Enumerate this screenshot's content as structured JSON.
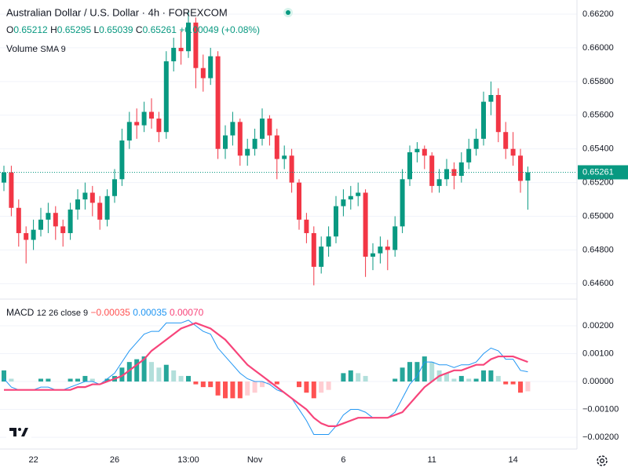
{
  "chart_data": [
    {
      "type": "candlestick",
      "title": "Australian Dollar / U.S. Dollar · 4h · FOREXCOM",
      "legend": {
        "open_label": "O",
        "open": "0.65212",
        "high_label": "H",
        "high": "0.65295",
        "low_label": "L",
        "low": "0.65039",
        "close_label": "C",
        "close": "0.65261",
        "change": "+0.00049 (+0.08%)"
      },
      "volume_label": "Volume",
      "volume_indicator": "SMA 9",
      "categories": [
        null,
        null,
        null,
        null,
        "22",
        null,
        null,
        null,
        null,
        null,
        null,
        null,
        null,
        null,
        null,
        "26",
        null,
        null,
        null,
        null,
        null,
        null,
        null,
        null,
        null,
        "13:00",
        null,
        null,
        null,
        null,
        null,
        null,
        null,
        null,
        "Nov",
        null,
        null,
        null,
        null,
        null,
        null,
        null,
        null,
        null,
        null,
        null,
        "6",
        null,
        null,
        null,
        null,
        null,
        null,
        null,
        null,
        null,
        null,
        null,
        "11",
        null,
        null,
        null,
        null,
        null,
        null,
        null,
        null,
        null,
        null,
        "14",
        null,
        null
      ],
      "open": [
        0.652,
        0.6526,
        0.6505,
        0.649,
        0.6486,
        0.6492,
        0.6498,
        0.6502,
        0.6494,
        0.649,
        0.6504,
        0.651,
        0.6514,
        0.6508,
        0.6498,
        0.6512,
        0.6522,
        0.6545,
        0.6556,
        0.6554,
        0.6562,
        0.6558,
        0.655,
        0.6592,
        0.66,
        0.6598,
        0.6615,
        0.6588,
        0.6582,
        0.6595,
        0.654,
        0.6548,
        0.6556,
        0.6536,
        0.654,
        0.6546,
        0.6558,
        0.6548,
        0.6534,
        0.6536,
        0.652,
        0.6498,
        0.649,
        0.647,
        0.6482,
        0.6488,
        0.6506,
        0.651,
        0.6512,
        0.6514,
        0.6476,
        0.6478,
        0.6482,
        0.648,
        0.6494,
        0.6522,
        0.6538,
        0.654,
        0.6536,
        0.6518,
        0.6522,
        0.6528,
        0.6524,
        0.6532,
        0.654,
        0.6546,
        0.6568,
        0.6572,
        0.655,
        0.654,
        0.6536,
        0.65212
      ],
      "high": [
        0.653,
        0.653,
        0.651,
        0.6494,
        0.6498,
        0.6505,
        0.6508,
        0.6506,
        0.6498,
        0.6508,
        0.6516,
        0.652,
        0.6518,
        0.6512,
        0.6516,
        0.6528,
        0.6552,
        0.6562,
        0.6564,
        0.6568,
        0.657,
        0.6562,
        0.6598,
        0.6606,
        0.661,
        0.6622,
        0.6618,
        0.6596,
        0.66,
        0.6598,
        0.6554,
        0.6562,
        0.6558,
        0.6546,
        0.6552,
        0.6564,
        0.656,
        0.6552,
        0.6542,
        0.654,
        0.6522,
        0.6502,
        0.6494,
        0.6488,
        0.6494,
        0.6512,
        0.6516,
        0.6518,
        0.652,
        0.6516,
        0.6484,
        0.6488,
        0.6486,
        0.65,
        0.6528,
        0.6542,
        0.6544,
        0.6542,
        0.6538,
        0.6528,
        0.6534,
        0.6532,
        0.6538,
        0.6546,
        0.6552,
        0.6574,
        0.658,
        0.6576,
        0.6556,
        0.655,
        0.654,
        0.65295
      ],
      "low": [
        0.6515,
        0.65,
        0.6482,
        0.6472,
        0.648,
        0.6488,
        0.649,
        0.6486,
        0.6482,
        0.6486,
        0.6498,
        0.6504,
        0.65,
        0.6492,
        0.6494,
        0.6508,
        0.6518,
        0.654,
        0.6546,
        0.655,
        0.6552,
        0.6544,
        0.6546,
        0.6586,
        0.659,
        0.6594,
        0.6576,
        0.6574,
        0.6578,
        0.6534,
        0.6534,
        0.6542,
        0.653,
        0.653,
        0.6536,
        0.6542,
        0.6542,
        0.6522,
        0.6528,
        0.6514,
        0.6492,
        0.6484,
        0.6459,
        0.6466,
        0.6476,
        0.6484,
        0.65,
        0.6504,
        0.6506,
        0.6464,
        0.6468,
        0.6472,
        0.6468,
        0.6476,
        0.649,
        0.6518,
        0.6532,
        0.6528,
        0.6514,
        0.6514,
        0.6518,
        0.6516,
        0.652,
        0.6528,
        0.6536,
        0.6542,
        0.656,
        0.6544,
        0.6534,
        0.653,
        0.6514,
        0.65039
      ],
      "close": [
        0.6526,
        0.6505,
        0.649,
        0.6486,
        0.6492,
        0.6498,
        0.6502,
        0.6494,
        0.649,
        0.6504,
        0.651,
        0.6514,
        0.6508,
        0.6498,
        0.6512,
        0.6522,
        0.6545,
        0.6556,
        0.6554,
        0.6562,
        0.6558,
        0.655,
        0.6592,
        0.66,
        0.6598,
        0.6615,
        0.6588,
        0.6582,
        0.6595,
        0.654,
        0.6548,
        0.6556,
        0.6536,
        0.654,
        0.6546,
        0.6558,
        0.6548,
        0.6534,
        0.6536,
        0.652,
        0.6498,
        0.649,
        0.647,
        0.6482,
        0.6488,
        0.6506,
        0.651,
        0.6512,
        0.6514,
        0.6476,
        0.6478,
        0.6482,
        0.648,
        0.6494,
        0.6522,
        0.6538,
        0.654,
        0.6536,
        0.6518,
        0.6522,
        0.6528,
        0.6524,
        0.6532,
        0.654,
        0.6546,
        0.6568,
        0.6572,
        0.655,
        0.654,
        0.6536,
        0.6521,
        0.65261
      ],
      "up_color": "#089981",
      "down_color": "#f23645",
      "ylim": [
        0.64513,
        0.66284
      ],
      "yticks": [
        {
          "value": 0.646,
          "label": "0.64600"
        },
        {
          "value": 0.648,
          "label": "0.64800"
        },
        {
          "value": 0.65,
          "label": "0.65000"
        },
        {
          "value": 0.652,
          "label": "0.65200"
        },
        {
          "value": 0.654,
          "label": "0.65400"
        },
        {
          "value": 0.656,
          "label": "0.65600"
        },
        {
          "value": 0.658,
          "label": "0.65800"
        },
        {
          "value": 0.66,
          "label": "0.66000"
        },
        {
          "value": 0.662,
          "label": "0.66200"
        }
      ],
      "grid": true
    },
    {
      "type": "macd",
      "title": "MACD",
      "params": "12 26 close 9",
      "histogram": {
        "legend_value": "−0.00035",
        "colors": [
          "#26a69a",
          "#b2dfdb",
          "#ff5252",
          "#ffcdd2"
        ],
        "values": [
          0.0004,
          0.0001,
          0,
          0,
          0,
          0.0001,
          0.0001,
          0,
          0,
          0.0001,
          0.0001,
          0.0002,
          0.0001,
          0,
          0.0001,
          0.0002,
          0.0005,
          0.0007,
          0.0008,
          0.0009,
          0.0007,
          0.0005,
          0.0006,
          0.0004,
          0.0002,
          0.0002,
          -0.0001,
          -0.0002,
          -0.0002,
          -0.0005,
          -0.0006,
          -0.0006,
          -0.0006,
          -0.0005,
          -0.0004,
          -0.0002,
          -0.0001,
          -0.0001,
          0,
          0,
          -0.0002,
          -0.0004,
          -0.0006,
          -0.0004,
          -0.0003,
          0,
          0.0003,
          0.0004,
          0.0003,
          0.0002,
          0,
          0,
          0,
          0.0001,
          0.0005,
          0.0007,
          0.0007,
          0.0009,
          0.0007,
          0.0004,
          0.0003,
          0.0001,
          0.0002,
          0.0001,
          0.0001,
          0.0004,
          0.0004,
          0.0002,
          -0.0001,
          -0.0001,
          -0.0004,
          -0.00035
        ]
      },
      "series": [
        {
          "color": "#2196f3",
          "legend_value": "0.00035",
          "values": [
            0.0001,
            -0.0002,
            -0.0003,
            -0.0003,
            -0.0003,
            -0.0002,
            -0.0002,
            -0.0003,
            -0.0003,
            -0.0002,
            -0.0001,
            0,
            0,
            -0.0001,
            0.0001,
            0.0003,
            0.0007,
            0.0011,
            0.0014,
            0.0017,
            0.0018,
            0.0018,
            0.0021,
            0.0021,
            0.0021,
            0.0022,
            0.002,
            0.0018,
            0.0017,
            0.0012,
            0.0009,
            0.0006,
            0.0003,
            0.0001,
            0,
            0,
            -0.0001,
            -0.0003,
            -0.0004,
            -0.0006,
            -0.001,
            -0.0014,
            -0.0019,
            -0.0019,
            -0.0019,
            -0.0016,
            -0.0012,
            -0.001,
            -0.001,
            -0.0011,
            -0.0013,
            -0.0013,
            -0.0013,
            -0.0011,
            -0.0006,
            -0.0001,
            0.0002,
            0.0007,
            0.0007,
            0.0006,
            0.0006,
            0.0005,
            0.0006,
            0.0006,
            0.0007,
            0.001,
            0.0012,
            0.0011,
            0.0008,
            0.0008,
            0.0004,
            0.00035
          ]
        },
        {
          "color": "#f7447a",
          "legend_value": "0.00070",
          "values": [
            -0.0003,
            -0.0003,
            -0.0003,
            -0.0003,
            -0.0003,
            -0.0003,
            -0.0003,
            -0.0003,
            -0.0003,
            -0.0003,
            -0.0002,
            -0.0002,
            -0.0001,
            -0.0001,
            0,
            0.0001,
            0.0002,
            0.0004,
            0.0006,
            0.0008,
            0.0011,
            0.0013,
            0.0015,
            0.0017,
            0.0019,
            0.002,
            0.0021,
            0.002,
            0.0019,
            0.0017,
            0.0015,
            0.0012,
            0.0009,
            0.0006,
            0.0004,
            0.0002,
            0,
            -0.0002,
            -0.0004,
            -0.0006,
            -0.0008,
            -0.001,
            -0.0013,
            -0.0015,
            -0.0016,
            -0.0016,
            -0.0015,
            -0.0014,
            -0.0013,
            -0.0013,
            -0.0013,
            -0.0013,
            -0.0013,
            -0.0012,
            -0.0011,
            -0.0008,
            -0.0005,
            -0.0002,
            0,
            0.0002,
            0.0003,
            0.0004,
            0.0004,
            0.0005,
            0.0006,
            0.0006,
            0.0008,
            0.0009,
            0.0009,
            0.0009,
            0.0008,
            0.0007
          ]
        }
      ],
      "ylim": [
        -0.00242,
        0.0029
      ],
      "yticks": [
        {
          "value": -0.002,
          "label": "−0.00200"
        },
        {
          "value": -0.001,
          "label": "−0.00100"
        },
        {
          "value": 0,
          "label": "0.00000"
        },
        {
          "value": 0.001,
          "label": "0.00100"
        },
        {
          "value": 0.002,
          "label": "0.00200"
        }
      ],
      "grid": true
    }
  ]
}
